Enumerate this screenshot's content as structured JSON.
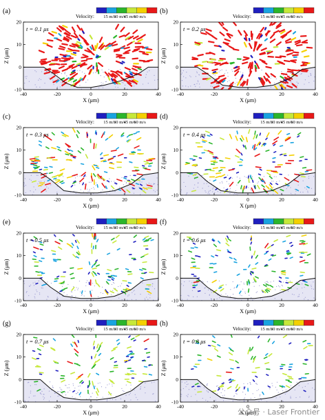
{
  "figure": {
    "colorbar": {
      "title": "Velocity:",
      "tick_labels": [
        "15 m/s",
        "30 m/s",
        "45 m/s",
        "60 m/s"
      ],
      "colors": [
        "#1f1fbf",
        "#19a3e0",
        "#2bb52b",
        "#c6e83a",
        "#f4d000",
        "#e81818"
      ]
    },
    "axis_labels": {
      "x": "X (μm)",
      "z": "Z (μm)"
    },
    "watermark": "公众号 · Laser Frontier"
  },
  "chart_data": [
    {
      "type": "scatter",
      "panel": "(a)",
      "time_label": "t = 0.1 μs",
      "xlim": [
        -40,
        40
      ],
      "ylim": [
        -10,
        20
      ],
      "xticks": [
        -40,
        -20,
        0,
        20,
        40
      ],
      "yticks": [
        -10,
        0,
        10,
        20
      ],
      "surface_profile": [
        [
          -40,
          0
        ],
        [
          -28,
          0
        ],
        [
          -22,
          -3
        ],
        [
          -15,
          -7
        ],
        [
          -8,
          -9
        ],
        [
          0,
          -9
        ],
        [
          8,
          -8
        ],
        [
          18,
          -6
        ],
        [
          28,
          -3
        ],
        [
          34,
          0
        ],
        [
          40,
          0
        ]
      ],
      "dominant_velocity": "60 m/s"
    },
    {
      "type": "scatter",
      "panel": "(b)",
      "time_label": "t = 0.2 μs",
      "xlim": [
        -40,
        40
      ],
      "ylim": [
        -10,
        20
      ],
      "xticks": [
        -40,
        -20,
        0,
        20,
        40
      ],
      "yticks": [
        -10,
        0,
        10,
        20
      ],
      "surface_profile": [
        [
          -40,
          0
        ],
        [
          -30,
          0
        ],
        [
          -24,
          -3
        ],
        [
          -15,
          -8
        ],
        [
          -5,
          -9
        ],
        [
          5,
          -9
        ],
        [
          15,
          -8
        ],
        [
          25,
          -5
        ],
        [
          32,
          -1
        ],
        [
          40,
          0
        ]
      ],
      "dominant_velocity": "45–60 m/s"
    },
    {
      "type": "scatter",
      "panel": "(c)",
      "time_label": "t = 0.3 μs",
      "xlim": [
        -40,
        40
      ],
      "ylim": [
        -10,
        20
      ],
      "xticks": [
        -40,
        -20,
        0,
        20,
        40
      ],
      "yticks": [
        -10,
        0,
        10,
        20
      ],
      "surface_profile": [
        [
          -40,
          0
        ],
        [
          -30,
          0
        ],
        [
          -24,
          -3
        ],
        [
          -16,
          -8
        ],
        [
          -6,
          -9
        ],
        [
          4,
          -9
        ],
        [
          14,
          -8
        ],
        [
          24,
          -5
        ],
        [
          31,
          -1
        ],
        [
          40,
          0
        ]
      ],
      "dominant_velocity": "30–45 m/s"
    },
    {
      "type": "scatter",
      "panel": "(d)",
      "time_label": "t = 0.4 μs",
      "xlim": [
        -40,
        40
      ],
      "ylim": [
        -10,
        20
      ],
      "xticks": [
        -40,
        -20,
        0,
        20,
        40
      ],
      "yticks": [
        -10,
        0,
        10,
        20
      ],
      "surface_profile": [
        [
          -40,
          0
        ],
        [
          -30,
          0
        ],
        [
          -24,
          -4
        ],
        [
          -16,
          -8
        ],
        [
          -6,
          -9
        ],
        [
          4,
          -9
        ],
        [
          14,
          -8
        ],
        [
          24,
          -5
        ],
        [
          31,
          -1
        ],
        [
          40,
          0
        ]
      ],
      "dominant_velocity": "30–45 m/s"
    },
    {
      "type": "scatter",
      "panel": "(e)",
      "time_label": "t = 0.5 μs",
      "xlim": [
        -40,
        40
      ],
      "ylim": [
        -10,
        20
      ],
      "xticks": [
        -40,
        -20,
        0,
        20,
        40
      ],
      "yticks": [
        -10,
        0,
        10,
        20
      ],
      "surface_profile": [
        [
          -40,
          0
        ],
        [
          -30,
          0
        ],
        [
          -24,
          -4
        ],
        [
          -16,
          -8
        ],
        [
          -6,
          -9
        ],
        [
          4,
          -9
        ],
        [
          14,
          -8
        ],
        [
          24,
          -5
        ],
        [
          31,
          -1
        ],
        [
          40,
          0
        ]
      ],
      "dominant_velocity": "15–30 m/s"
    },
    {
      "type": "scatter",
      "panel": "(f)",
      "time_label": "t = 0.6 μs",
      "xlim": [
        -40,
        40
      ],
      "ylim": [
        -10,
        20
      ],
      "xticks": [
        -40,
        -20,
        0,
        20,
        40
      ],
      "yticks": [
        -10,
        0,
        10,
        20
      ],
      "surface_profile": [
        [
          -40,
          0
        ],
        [
          -30,
          0
        ],
        [
          -24,
          -4
        ],
        [
          -16,
          -8
        ],
        [
          -6,
          -9
        ],
        [
          4,
          -9
        ],
        [
          14,
          -8
        ],
        [
          24,
          -5
        ],
        [
          31,
          -1
        ],
        [
          40,
          0
        ]
      ],
      "dominant_velocity": "15–30 m/s"
    },
    {
      "type": "scatter",
      "panel": "(g)",
      "time_label": "t = 0.7 μs",
      "xlim": [
        -40,
        40
      ],
      "ylim": [
        -10,
        20
      ],
      "xticks": [
        -40,
        -20,
        0,
        20,
        40
      ],
      "yticks": [
        -10,
        0,
        10,
        20
      ],
      "surface_profile": [
        [
          -40,
          0
        ],
        [
          -30,
          0
        ],
        [
          -24,
          -4
        ],
        [
          -16,
          -8
        ],
        [
          -6,
          -9
        ],
        [
          4,
          -9
        ],
        [
          14,
          -8
        ],
        [
          24,
          -5
        ],
        [
          31,
          -1
        ],
        [
          40,
          0
        ]
      ],
      "dominant_velocity": "15–30 m/s"
    },
    {
      "type": "scatter",
      "panel": "(h)",
      "time_label": "t = 0.8 μs",
      "xlim": [
        -40,
        40
      ],
      "ylim": [
        -10,
        20
      ],
      "xticks": [
        -40,
        -20,
        0,
        20,
        40
      ],
      "yticks": [
        -10,
        0,
        10,
        20
      ],
      "surface_profile": [
        [
          -40,
          0
        ],
        [
          -30,
          0
        ],
        [
          -24,
          -4
        ],
        [
          -16,
          -8
        ],
        [
          -6,
          -9
        ],
        [
          4,
          -9
        ],
        [
          14,
          -8
        ],
        [
          24,
          -5
        ],
        [
          31,
          -1
        ],
        [
          40,
          0
        ]
      ],
      "dominant_velocity": "15–30 m/s"
    }
  ]
}
